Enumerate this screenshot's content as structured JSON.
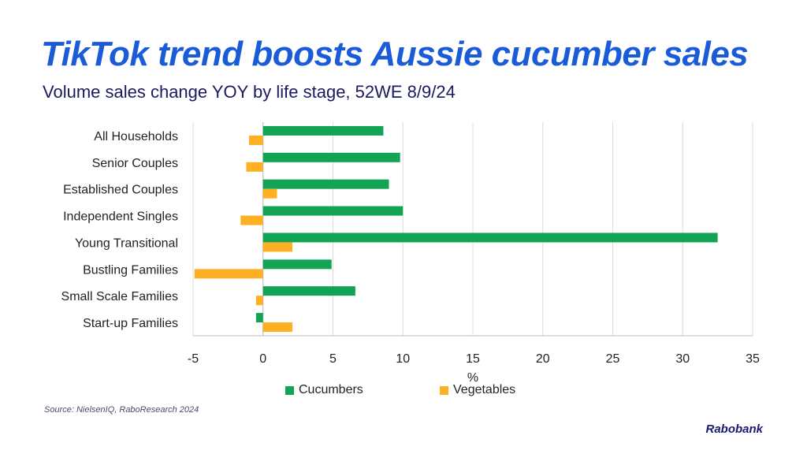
{
  "title": "TikTok trend boosts Aussie cucumber sales",
  "subtitle": "Volume sales change YOY by life stage, 52WE 8/9/24",
  "source": "Source: NielsenIQ, RaboResearch 2024",
  "logo": "Rabobank",
  "colors": {
    "cucumbers": "#12a454",
    "vegetables": "#fcb022",
    "title": "#1a5cd8"
  },
  "chart_data": {
    "type": "bar",
    "orientation": "horizontal",
    "categories": [
      "All Households",
      "Senior Couples",
      "Established Couples",
      "Independent Singles",
      "Young Transitional",
      "Bustling Families",
      "Small Scale Families",
      "Start-up Families"
    ],
    "series": [
      {
        "name": "Cucumbers",
        "values": [
          8.6,
          9.8,
          9.0,
          10.0,
          32.5,
          4.9,
          6.6,
          -0.5
        ]
      },
      {
        "name": "Vegetables",
        "values": [
          -1.0,
          -1.2,
          1.0,
          -1.6,
          2.1,
          -4.9,
          -0.5,
          2.1
        ]
      }
    ],
    "xlabel": "%",
    "xlim": [
      -5,
      35
    ],
    "xticks": [
      "-5",
      "0",
      "5",
      "10",
      "15",
      "20",
      "25",
      "30",
      "35"
    ],
    "grid": "vertical",
    "legend": "bottom"
  }
}
